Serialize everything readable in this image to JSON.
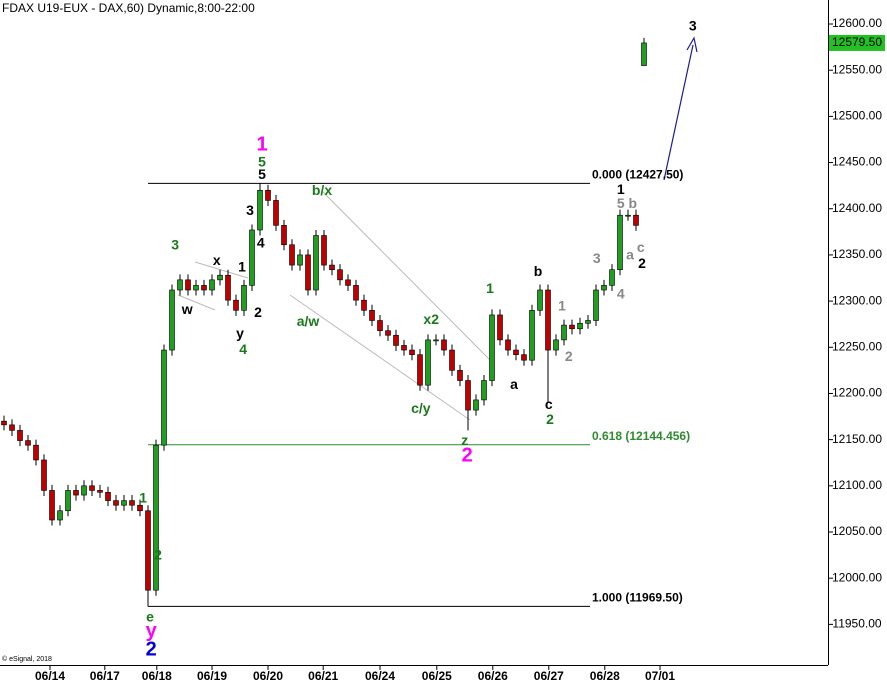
{
  "chart_data": {
    "type": "candlestick",
    "title": "FDAX U19-EUX - DAX,60) Dynamic,8:00-22:00",
    "credit": "© eSignal, 2018",
    "up_color": "#1f9e1f",
    "down_color": "#c00000",
    "open": [
      12170,
      12166,
      12160,
      12149,
      12144,
      12128,
      12095,
      12063,
      12073,
      12095,
      12090,
      12100,
      12095,
      12093,
      12084,
      12079,
      12084,
      12079,
      12073,
      11987,
      12144,
      12247,
      12312,
      12323,
      12312,
      12317,
      12312,
      12323,
      12328,
      12301,
      12290,
      12317,
      12377,
      12420,
      12409,
      12382,
      12361,
      12339,
      12350,
      12312,
      12371,
      12339,
      12334,
      12323,
      12317,
      12301,
      12290,
      12279,
      12268,
      12263,
      12252,
      12247,
      12242,
      12209,
      12258,
      12258,
      12247,
      12225,
      12214,
      12182,
      12193,
      12214,
      12285,
      12258,
      12247,
      12242,
      12236,
      12290,
      12312,
      12247,
      12258,
      12274,
      12270,
      12276,
      12279,
      12312,
      12317,
      12334,
      12393,
      12393,
      12555
    ],
    "high": [
      12176,
      12172,
      12166,
      12155,
      12150,
      12134,
      12101,
      12079,
      12101,
      12101,
      12106,
      12106,
      12101,
      12099,
      12090,
      12090,
      12090,
      12085,
      12079,
      12150,
      12253,
      12318,
      12329,
      12329,
      12323,
      12323,
      12329,
      12334,
      12334,
      12307,
      12323,
      12383,
      12427.5,
      12426,
      12415,
      12388,
      12367,
      12356,
      12356,
      12377,
      12377,
      12345,
      12340,
      12329,
      12323,
      12307,
      12296,
      12285,
      12274,
      12269,
      12258,
      12253,
      12248,
      12264,
      12264,
      12264,
      12253,
      12231,
      12220,
      12199,
      12220,
      12291,
      12291,
      12264,
      12253,
      12248,
      12296,
      12318,
      12318,
      12264,
      12280,
      12280,
      12282,
      12285,
      12318,
      12323,
      12340,
      12399,
      12399,
      12399,
      12585
    ],
    "low": [
      12160,
      12154,
      12143,
      12138,
      12122,
      12089,
      12057,
      12057,
      12067,
      12084,
      12084,
      12089,
      12087,
      12078,
      12073,
      12073,
      12073,
      12067,
      11969.5,
      11981,
      12138,
      12241,
      12306,
      12306,
      12306,
      12306,
      12306,
      12317,
      12295,
      12284,
      12284,
      12311,
      12371,
      12403,
      12376,
      12355,
      12333,
      12333,
      12306,
      12306,
      12333,
      12328,
      12317,
      12311,
      12295,
      12284,
      12273,
      12262,
      12257,
      12246,
      12241,
      12236,
      12203,
      12203,
      12252,
      12241,
      12219,
      12208,
      12160,
      12176,
      12187,
      12208,
      12252,
      12241,
      12236,
      12230,
      12230,
      12284,
      12190,
      12241,
      12252,
      12264,
      12264,
      12270,
      12273,
      12306,
      12311,
      12328,
      12387,
      12376,
      12555
    ],
    "close": [
      12166,
      12160,
      12149,
      12144,
      12128,
      12095,
      12063,
      12073,
      12095,
      12090,
      12100,
      12095,
      12093,
      12084,
      12079,
      12084,
      12079,
      12073,
      11987,
      12144,
      12247,
      12312,
      12323,
      12312,
      12317,
      12312,
      12323,
      12328,
      12301,
      12290,
      12317,
      12377,
      12420,
      12409,
      12382,
      12361,
      12339,
      12350,
      12312,
      12371,
      12339,
      12334,
      12323,
      12317,
      12301,
      12290,
      12279,
      12268,
      12263,
      12252,
      12247,
      12242,
      12209,
      12258,
      12258,
      12247,
      12225,
      12214,
      12182,
      12193,
      12214,
      12285,
      12258,
      12247,
      12242,
      12236,
      12290,
      12312,
      12247,
      12258,
      12274,
      12270,
      12276,
      12279,
      12312,
      12317,
      12334,
      12393,
      12393,
      12382,
      12579.5
    ],
    "last_price_label": "12579.50",
    "xlim": [
      0,
      103.5
    ],
    "xticks": [
      {
        "value": 6.25,
        "label": "06/14"
      },
      {
        "value": 13.1,
        "label": "06/17"
      },
      {
        "value": 19.6,
        "label": "06/18"
      },
      {
        "value": 26.5,
        "label": "06/19"
      },
      {
        "value": 33.5,
        "label": "06/20"
      },
      {
        "value": 40.4,
        "label": "06/21"
      },
      {
        "value": 47.5,
        "label": "06/24"
      },
      {
        "value": 54.6,
        "label": "06/25"
      },
      {
        "value": 61.6,
        "label": "06/26"
      },
      {
        "value": 68.6,
        "label": "06/27"
      },
      {
        "value": 75.6,
        "label": "06/28"
      },
      {
        "value": 82.5,
        "label": "07/01"
      }
    ],
    "ylim": [
      11906,
      12626
    ],
    "yticks": [
      {
        "value": 11950,
        "label": "11950.00"
      },
      {
        "value": 12000,
        "label": "12000.00"
      },
      {
        "value": 12050,
        "label": "12050.00"
      },
      {
        "value": 12100,
        "label": "12100.00"
      },
      {
        "value": 12150,
        "label": "12150.00"
      },
      {
        "value": 12200,
        "label": "12200.00"
      },
      {
        "value": 12250,
        "label": "12250.00"
      },
      {
        "value": 12300,
        "label": "12300.00"
      },
      {
        "value": 12350,
        "label": "12350.00"
      },
      {
        "value": 12400,
        "label": "12400.00"
      },
      {
        "value": 12450,
        "label": "12450.00"
      },
      {
        "value": 12500,
        "label": "12500.00"
      },
      {
        "value": 12550,
        "label": "12550.00"
      },
      {
        "value": 12600,
        "label": "12600.00"
      }
    ],
    "levels": [
      {
        "value": 12427.5,
        "label": "0.000 (12427.50)",
        "color": "#000000",
        "x_range": [
          18.5,
          73.75
        ]
      },
      {
        "value": 12144.456,
        "label": "0.618 (12144.456)",
        "color": "#2e8b2e",
        "x_range": [
          18.5,
          73.75
        ]
      },
      {
        "value": 11969.5,
        "label": "1.000 (11969.50)",
        "color": "#000000",
        "x_range": [
          18.5,
          73.75
        ]
      }
    ],
    "annotations": [
      {
        "text": "1",
        "x": 32.75,
        "y": 12469,
        "color": "#ff00ff"
      },
      {
        "text": "5",
        "x": 32.75,
        "y": 12450,
        "color": "#1a7a1a"
      },
      {
        "text": "5",
        "x": 32.75,
        "y": 12436,
        "color": "#000000"
      },
      {
        "text": "3",
        "x": 31.25,
        "y": 12397,
        "color": "#000000"
      },
      {
        "text": "4",
        "x": 32.6,
        "y": 12362,
        "color": "#000000"
      },
      {
        "text": "3",
        "x": 21.9,
        "y": 12360,
        "color": "#1a7a1a"
      },
      {
        "text": "x",
        "x": 27.1,
        "y": 12343,
        "color": "#000000"
      },
      {
        "text": "1",
        "x": 30.25,
        "y": 12336,
        "color": "#000000"
      },
      {
        "text": "w",
        "x": 23.4,
        "y": 12290,
        "color": "#000000"
      },
      {
        "text": "2",
        "x": 32.25,
        "y": 12287,
        "color": "#000000"
      },
      {
        "text": "y",
        "x": 30,
        "y": 12264,
        "color": "#000000"
      },
      {
        "text": "4",
        "x": 30.4,
        "y": 12247,
        "color": "#1a7a1a"
      },
      {
        "text": "b/x",
        "x": 40.25,
        "y": 12419,
        "color": "#1a7a1a"
      },
      {
        "text": "a/w",
        "x": 38.5,
        "y": 12277,
        "color": "#1a7a1a"
      },
      {
        "text": "x2",
        "x": 53.9,
        "y": 12279,
        "color": "#1a7a1a"
      },
      {
        "text": "c/y",
        "x": 52.6,
        "y": 12183,
        "color": "#1a7a1a"
      },
      {
        "text": "z",
        "x": 58.1,
        "y": 12148,
        "color": "#1a7a1a"
      },
      {
        "text": "2",
        "x": 58.4,
        "y": 12132,
        "color": "#ff00ff"
      },
      {
        "text": "1",
        "x": 61.25,
        "y": 12313,
        "color": "#1a7a1a"
      },
      {
        "text": "a",
        "x": 64.25,
        "y": 12209,
        "color": "#000000"
      },
      {
        "text": "b",
        "x": 67.25,
        "y": 12331,
        "color": "#000000"
      },
      {
        "text": "c",
        "x": 68.6,
        "y": 12187,
        "color": "#000000"
      },
      {
        "text": "2",
        "x": 68.75,
        "y": 12171,
        "color": "#1a7a1a"
      },
      {
        "text": "1",
        "x": 70.25,
        "y": 12294,
        "color": "#888888"
      },
      {
        "text": "2",
        "x": 71.1,
        "y": 12239,
        "color": "#888888"
      },
      {
        "text": "3",
        "x": 74.6,
        "y": 12345,
        "color": "#888888"
      },
      {
        "text": "4",
        "x": 77.6,
        "y": 12307,
        "color": "#888888"
      },
      {
        "text": "1",
        "x": 77.6,
        "y": 12420,
        "color": "#000000"
      },
      {
        "text": "5",
        "x": 77.6,
        "y": 12405,
        "color": "#888888"
      },
      {
        "text": "b",
        "x": 79.1,
        "y": 12405,
        "color": "#888888"
      },
      {
        "text": "a",
        "x": 78.75,
        "y": 12349,
        "color": "#888888"
      },
      {
        "text": "c",
        "x": 80.1,
        "y": 12357,
        "color": "#888888"
      },
      {
        "text": "2",
        "x": 80.25,
        "y": 12340,
        "color": "#000000"
      },
      {
        "text": "3",
        "x": 86.6,
        "y": 12597,
        "color": "#000000"
      },
      {
        "text": "1",
        "x": 17.9,
        "y": 12086,
        "color": "#1a7a1a"
      },
      {
        "text": "2",
        "x": 19.75,
        "y": 12024,
        "color": "#1a7a1a"
      },
      {
        "text": "e",
        "x": 18.75,
        "y": 11957,
        "color": "#1a7a1a"
      },
      {
        "text": "y",
        "x": 18.9,
        "y": 11942,
        "color": "#ff00ff"
      },
      {
        "text": "2",
        "x": 18.9,
        "y": 11922,
        "color": "#0000dd"
      }
    ]
  }
}
